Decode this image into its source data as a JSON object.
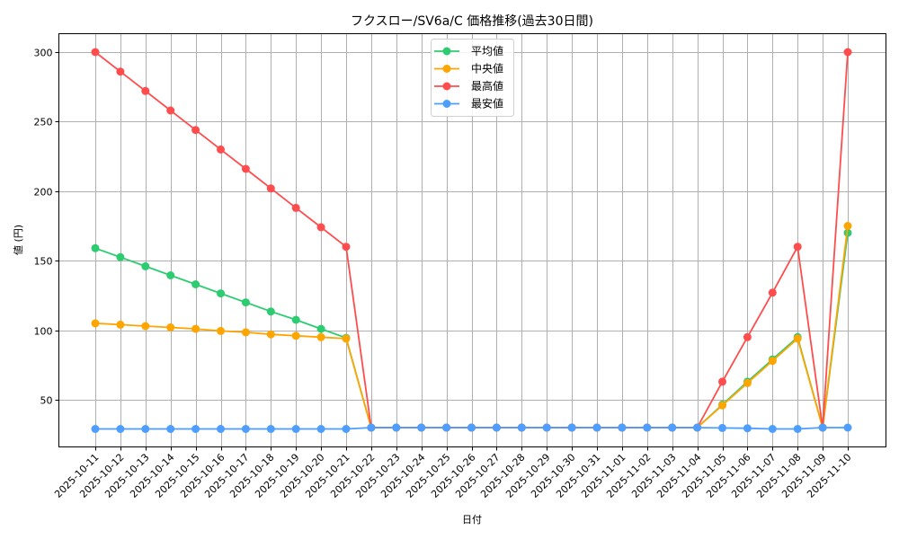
{
  "chart_data": {
    "type": "line",
    "title": "フクスロー/SV6a/C 価格推移(過去30日間)",
    "xlabel": "日付",
    "ylabel": "値 (円)",
    "grid": true,
    "legend_position": "upper center",
    "ylim": [
      15,
      313
    ],
    "yticks": [
      50,
      100,
      150,
      200,
      250,
      300
    ],
    "x": [
      "2025-10-11",
      "2025-10-12",
      "2025-10-13",
      "2025-10-14",
      "2025-10-15",
      "2025-10-16",
      "2025-10-17",
      "2025-10-18",
      "2025-10-19",
      "2025-10-20",
      "2025-10-21",
      "2025-10-22",
      "2025-10-23",
      "2025-10-24",
      "2025-10-25",
      "2025-10-26",
      "2025-10-27",
      "2025-10-28",
      "2025-10-29",
      "2025-10-30",
      "2025-10-31",
      "2025-11-01",
      "2025-11-02",
      "2025-11-03",
      "2025-11-04",
      "2025-11-05",
      "2025-11-06",
      "2025-11-07",
      "2025-11-08",
      "2025-11-09",
      "2025-11-10"
    ],
    "series": [
      {
        "name": "平均値",
        "color": "#2ecc71",
        "values": [
          159,
          152.5,
          146,
          139.5,
          133,
          126.5,
          120,
          113.5,
          107.5,
          101,
          94.5,
          30,
          30,
          30,
          30,
          30,
          30,
          30,
          30,
          30,
          30,
          30,
          30,
          30,
          30,
          46.5,
          63,
          79,
          95,
          30,
          170
        ]
      },
      {
        "name": "中央値",
        "color": "#ffa500",
        "values": [
          105,
          104,
          103,
          102,
          101,
          99.5,
          98.5,
          97,
          96,
          95,
          94,
          30,
          30,
          30,
          30,
          30,
          30,
          30,
          30,
          30,
          30,
          30,
          30,
          30,
          30,
          46,
          62,
          78,
          94,
          30,
          175
        ]
      },
      {
        "name": "最高値",
        "color": "#ff4d4d",
        "values": [
          300,
          286,
          272,
          258,
          244,
          230,
          216,
          202,
          188,
          174,
          160,
          30,
          30,
          30,
          30,
          30,
          30,
          30,
          30,
          30,
          30,
          30,
          30,
          30,
          30,
          63,
          95,
          127,
          160,
          30,
          300
        ]
      },
      {
        "name": "最安値",
        "color": "#4d9eff",
        "values": [
          29,
          29,
          29,
          29,
          29,
          29,
          29,
          29,
          29,
          29,
          29,
          30,
          30,
          30,
          30,
          30,
          30,
          30,
          30,
          30,
          30,
          30,
          30,
          30,
          30,
          29.7,
          29.5,
          29,
          29,
          30,
          30
        ]
      }
    ]
  }
}
